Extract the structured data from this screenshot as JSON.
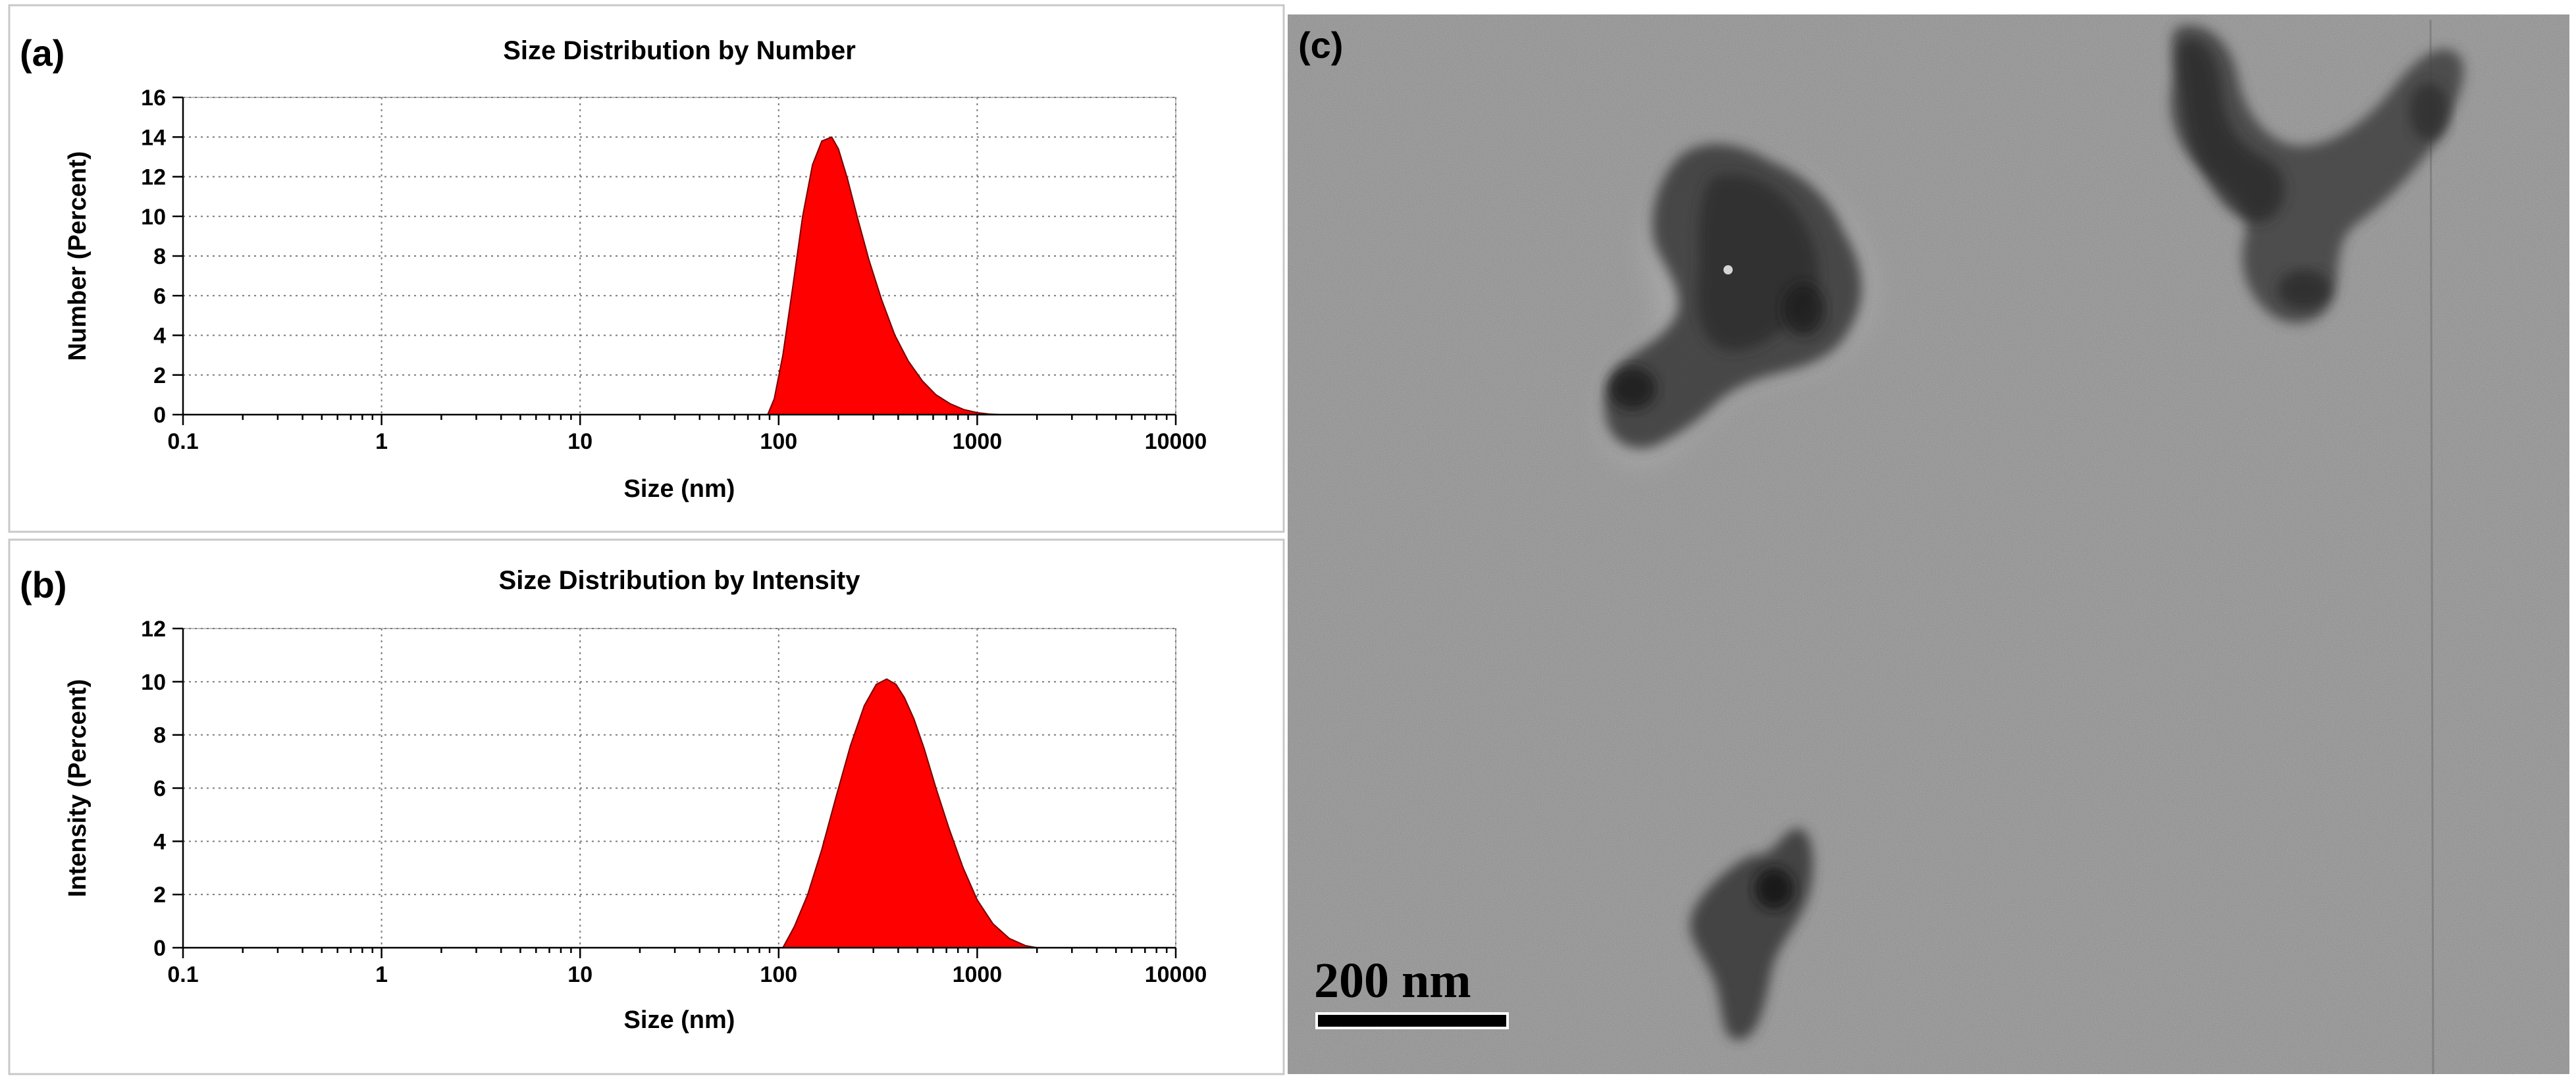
{
  "panels": {
    "a": {
      "letter": "(a)"
    },
    "b": {
      "letter": "(b)"
    },
    "c": {
      "letter": "(c)",
      "scale_bar_label": "200 nm",
      "scale_bar_color": "#000000"
    }
  },
  "chart_data": [
    {
      "id": "a",
      "type": "area",
      "title": "Size Distribution by Number",
      "xlabel": "Size (nm)",
      "ylabel": "Number (Percent)",
      "xscale": "log",
      "xlim": [
        0.1,
        10000
      ],
      "ylim": [
        0,
        16
      ],
      "xticks": [
        0.1,
        1,
        10,
        100,
        1000,
        10000
      ],
      "xtick_labels": [
        "0.1",
        "1",
        "10",
        "100",
        "1000",
        "10000"
      ],
      "yticks": [
        0,
        2,
        4,
        6,
        8,
        10,
        12,
        14,
        16
      ],
      "ytick_labels": [
        "0",
        "2",
        "4",
        "6",
        "8",
        "10",
        "12",
        "14",
        "16"
      ],
      "grid": true,
      "fill_color": "#ff0000",
      "x": [
        88,
        95,
        105,
        118,
        132,
        148,
        165,
        185,
        200,
        222,
        250,
        285,
        330,
        385,
        450,
        530,
        620,
        730,
        860,
        1000,
        1150,
        1300
      ],
      "y": [
        0,
        0.8,
        3.0,
        6.5,
        10.0,
        12.6,
        13.8,
        14.0,
        13.4,
        11.9,
        9.9,
        7.8,
        5.8,
        4.0,
        2.7,
        1.7,
        1.0,
        0.55,
        0.25,
        0.1,
        0.03,
        0
      ]
    },
    {
      "id": "b",
      "type": "area",
      "title": "Size Distribution by Intensity",
      "xlabel": "Size (nm)",
      "ylabel": "Intensity (Percent)",
      "xscale": "log",
      "xlim": [
        0.1,
        10000
      ],
      "ylim": [
        0,
        12
      ],
      "xticks": [
        0.1,
        1,
        10,
        100,
        1000,
        10000
      ],
      "xtick_labels": [
        "0.1",
        "1",
        "10",
        "100",
        "1000",
        "10000"
      ],
      "yticks": [
        0,
        2,
        4,
        6,
        8,
        10,
        12
      ],
      "ytick_labels": [
        "0",
        "2",
        "4",
        "6",
        "8",
        "10",
        "12"
      ],
      "grid": true,
      "fill_color": "#ff0000",
      "x": [
        105,
        120,
        140,
        165,
        195,
        230,
        270,
        310,
        350,
        390,
        430,
        480,
        540,
        620,
        720,
        850,
        1000,
        1200,
        1450,
        1750,
        2000
      ],
      "y": [
        0,
        0.8,
        2.0,
        3.7,
        5.7,
        7.6,
        9.1,
        9.9,
        10.1,
        9.9,
        9.4,
        8.6,
        7.5,
        6.0,
        4.5,
        3.0,
        1.8,
        0.9,
        0.35,
        0.08,
        0
      ]
    }
  ]
}
